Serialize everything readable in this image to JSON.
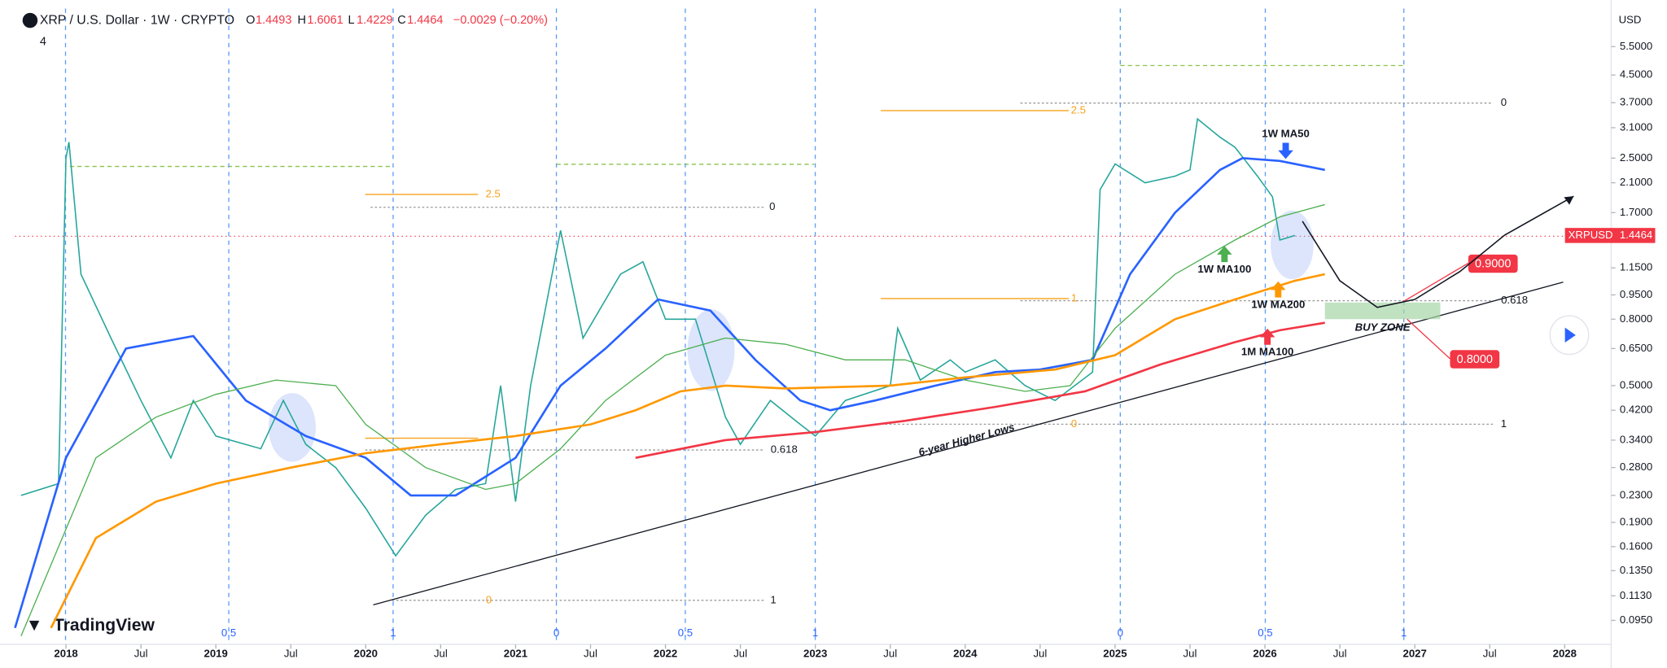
{
  "chart_data": {
    "type": "line",
    "log_scale": true,
    "header": {
      "symbol": "XRP / U.S. Dollar · 1W · CRYPTO",
      "o_label": "O",
      "open": "1.4493",
      "h_label": "H",
      "high": "1.6061",
      "l_label": "L",
      "low": "1.4229",
      "c_label": "C",
      "close": "1.4464",
      "change": "−0.0029 (−0.20%)",
      "indicators": "4"
    },
    "currency": "USD",
    "brand": "TradingView",
    "xlim": [
      2017.66,
      2028.31
    ],
    "xticks": [
      {
        "value": 2018,
        "label": "2018"
      },
      {
        "value": 2018.5,
        "label": "Jul"
      },
      {
        "value": 2019,
        "label": "2019"
      },
      {
        "value": 2019.5,
        "label": "Jul"
      },
      {
        "value": 2020,
        "label": "2020"
      },
      {
        "value": 2020.5,
        "label": "Jul"
      },
      {
        "value": 2021,
        "label": "2021"
      },
      {
        "value": 2021.5,
        "label": "Jul"
      },
      {
        "value": 2022,
        "label": "2022"
      },
      {
        "value": 2022.5,
        "label": "Jul"
      },
      {
        "value": 2023,
        "label": "2023"
      },
      {
        "value": 2023.5,
        "label": "Jul"
      },
      {
        "value": 2024,
        "label": "2024"
      },
      {
        "value": 2024.5,
        "label": "Jul"
      },
      {
        "value": 2025,
        "label": "2025"
      },
      {
        "value": 2025.5,
        "label": "Jul"
      },
      {
        "value": 2026,
        "label": "2026"
      },
      {
        "value": 2026.5,
        "label": "Jul"
      },
      {
        "value": 2027,
        "label": "2027"
      },
      {
        "value": 2027.5,
        "label": "Jul"
      },
      {
        "value": 2028,
        "label": "2028"
      }
    ],
    "ylim": [
      0.082,
      7.2
    ],
    "yticks": [
      {
        "value": 5.5,
        "label": "5.5000"
      },
      {
        "value": 4.5,
        "label": "4.5000"
      },
      {
        "value": 3.7,
        "label": "3.7000"
      },
      {
        "value": 3.1,
        "label": "3.1000"
      },
      {
        "value": 2.5,
        "label": "2.5000"
      },
      {
        "value": 2.1,
        "label": "2.1000"
      },
      {
        "value": 1.7,
        "label": "1.7000"
      },
      {
        "value": 1.15,
        "label": "1.1500"
      },
      {
        "value": 0.95,
        "label": "0.9500"
      },
      {
        "value": 0.8,
        "label": "0.8000"
      },
      {
        "value": 0.65,
        "label": "0.6500"
      },
      {
        "value": 0.5,
        "label": "0.5000"
      },
      {
        "value": 0.42,
        "label": "0.4200"
      },
      {
        "value": 0.34,
        "label": "0.3400"
      },
      {
        "value": 0.28,
        "label": "0.2800"
      },
      {
        "value": 0.23,
        "label": "0.2300"
      },
      {
        "value": 0.19,
        "label": "0.1900"
      },
      {
        "value": 0.16,
        "label": "0.1600"
      },
      {
        "value": 0.135,
        "label": "0.1350"
      },
      {
        "value": 0.113,
        "label": "0.1130"
      },
      {
        "value": 0.095,
        "label": "0.0950"
      }
    ],
    "series": [
      {
        "name": "XRPUSD",
        "color": "#26a69a",
        "x": [
          2017.7,
          2017.95,
          2018.0,
          2018.02,
          2018.1,
          2018.3,
          2018.5,
          2018.7,
          2018.85,
          2019.0,
          2019.3,
          2019.45,
          2019.6,
          2019.8,
          2020.0,
          2020.2,
          2020.4,
          2020.6,
          2020.8,
          2020.9,
          2021.0,
          2021.1,
          2021.3,
          2021.45,
          2021.7,
          2021.85,
          2022.0,
          2022.2,
          2022.4,
          2022.5,
          2022.7,
          2022.9,
          2023.0,
          2023.2,
          2023.5,
          2023.55,
          2023.7,
          2023.9,
          2024.0,
          2024.2,
          2024.4,
          2024.6,
          2024.85,
          2024.9,
          2025.0,
          2025.2,
          2025.4,
          2025.5,
          2025.55,
          2025.7,
          2025.8,
          2025.95,
          2026.05,
          2026.1,
          2026.2
        ],
        "values": [
          0.23,
          0.25,
          2.5,
          2.8,
          1.1,
          0.7,
          0.45,
          0.3,
          0.45,
          0.35,
          0.32,
          0.45,
          0.33,
          0.28,
          0.21,
          0.15,
          0.2,
          0.24,
          0.25,
          0.5,
          0.22,
          0.5,
          1.5,
          0.7,
          1.1,
          1.2,
          0.8,
          0.8,
          0.4,
          0.33,
          0.45,
          0.38,
          0.35,
          0.45,
          0.5,
          0.75,
          0.52,
          0.6,
          0.55,
          0.6,
          0.5,
          0.45,
          0.55,
          2.0,
          2.4,
          2.1,
          2.2,
          2.3,
          3.3,
          2.9,
          2.7,
          2.2,
          1.9,
          1.4,
          1.4464
        ]
      },
      {
        "name": "1W MA50",
        "color": "#2962ff",
        "x": [
          2017.66,
          2018.0,
          2018.4,
          2018.85,
          2019.2,
          2019.6,
          2020.0,
          2020.3,
          2020.6,
          2021.0,
          2021.3,
          2021.6,
          2021.95,
          2022.3,
          2022.6,
          2022.9,
          2023.1,
          2023.4,
          2023.8,
          2024.2,
          2024.5,
          2024.85,
          2025.1,
          2025.4,
          2025.7,
          2025.85,
          2026.1,
          2026.4
        ],
        "values": [
          0.09,
          0.3,
          0.65,
          0.71,
          0.45,
          0.35,
          0.3,
          0.23,
          0.23,
          0.3,
          0.5,
          0.65,
          0.92,
          0.85,
          0.6,
          0.45,
          0.42,
          0.45,
          0.5,
          0.55,
          0.56,
          0.6,
          1.1,
          1.7,
          2.3,
          2.5,
          2.45,
          2.3
        ]
      },
      {
        "name": "1W MA100",
        "color": "#4caf50",
        "x": [
          2017.7,
          2018.2,
          2018.6,
          2019.0,
          2019.4,
          2019.8,
          2020.0,
          2020.4,
          2020.8,
          2021.0,
          2021.3,
          2021.6,
          2022.0,
          2022.4,
          2022.8,
          2023.2,
          2023.6,
          2024.0,
          2024.4,
          2024.7,
          2025.0,
          2025.4,
          2025.8,
          2026.1,
          2026.4
        ],
        "values": [
          0.085,
          0.3,
          0.4,
          0.47,
          0.52,
          0.5,
          0.38,
          0.28,
          0.24,
          0.25,
          0.32,
          0.45,
          0.62,
          0.7,
          0.67,
          0.6,
          0.6,
          0.52,
          0.48,
          0.5,
          0.75,
          1.1,
          1.4,
          1.65,
          1.8
        ]
      },
      {
        "name": "1W MA200",
        "color": "#ff9800",
        "x": [
          2017.9,
          2018.2,
          2018.6,
          2019.0,
          2019.5,
          2020.0,
          2020.5,
          2021.0,
          2021.5,
          2021.8,
          2022.1,
          2022.4,
          2022.8,
          2023.5,
          2024.0,
          2024.6,
          2025.0,
          2025.4,
          2025.8,
          2026.2,
          2026.4
        ],
        "values": [
          0.09,
          0.17,
          0.22,
          0.25,
          0.28,
          0.31,
          0.33,
          0.35,
          0.38,
          0.42,
          0.48,
          0.5,
          0.49,
          0.5,
          0.53,
          0.56,
          0.62,
          0.8,
          0.92,
          1.05,
          1.1
        ]
      },
      {
        "name": "1M MA100",
        "color": "#f23645",
        "x": [
          2021.8,
          2022.4,
          2023.0,
          2023.6,
          2024.2,
          2024.8,
          2025.3,
          2025.8,
          2026.1,
          2026.4
        ],
        "values": [
          0.3,
          0.34,
          0.36,
          0.39,
          0.43,
          0.48,
          0.58,
          0.68,
          0.74,
          0.78
        ]
      }
    ],
    "trendline": {
      "label": "6-year Higher Lows",
      "x": [
        2020.05,
        2027.99
      ],
      "values": [
        0.106,
        1.04
      ]
    },
    "projection": {
      "x": [
        2026.25,
        2026.5,
        2026.75,
        2027.0,
        2027.3,
        2027.6,
        2028.06
      ],
      "values": [
        1.6,
        1.05,
        0.87,
        0.92,
        1.12,
        1.45,
        1.91
      ]
    },
    "buy_zone": {
      "label": "BUY ZONE",
      "x": [
        2026.4,
        2027.17
      ],
      "values": [
        0.8,
        0.9
      ],
      "value_labels": [
        "0.8000",
        "0.9000"
      ]
    },
    "fib_labels": [
      "0",
      "2.5",
      "0.618",
      "1",
      "0",
      "1",
      "2.5",
      "0",
      "0.618",
      "1",
      "0"
    ],
    "fib_time_labels": [
      "0.5",
      "1",
      "0",
      "0.5",
      "1",
      "0",
      "0.5",
      "1"
    ]
  }
}
